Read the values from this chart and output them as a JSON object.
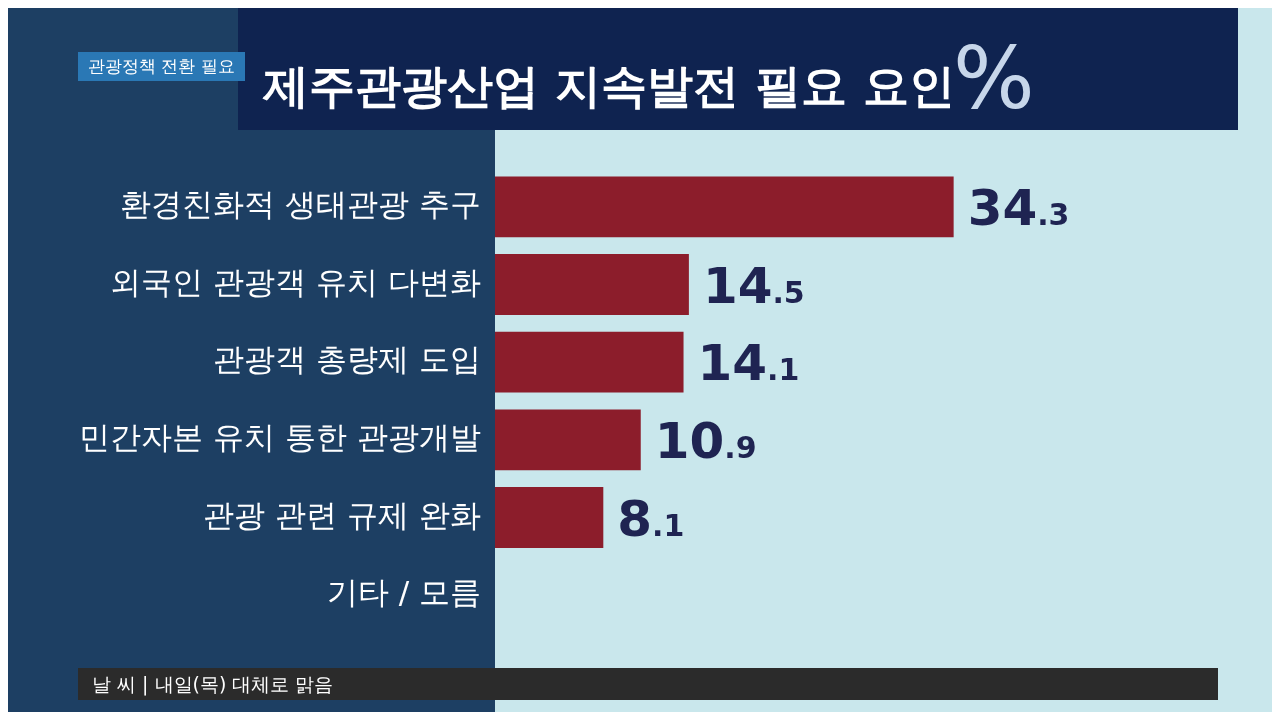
{
  "chart_data": {
    "type": "bar",
    "orientation": "horizontal",
    "title": "제주관광산업 지속발전 필요 요인",
    "subtitle": "관광정책 전환 필요",
    "xlabel": "%",
    "categories": [
      "환경친화적 생태관광 추구",
      "외국인 관광객 유치 다변화",
      "관광객 총량제 도입",
      "민간자본 유치 통한 관광개발",
      "관광 관련 규제 완화",
      "기타 / 모름"
    ],
    "values": [
      34.3,
      14.5,
      14.1,
      10.9,
      8.1,
      null
    ],
    "color": "#8c1d2b",
    "data_labels": true,
    "grid": false,
    "legend": false,
    "tick_labels": "y",
    "annotations": [
      "날 씨 | 내일(목) 대체로 맑음"
    ]
  }
}
